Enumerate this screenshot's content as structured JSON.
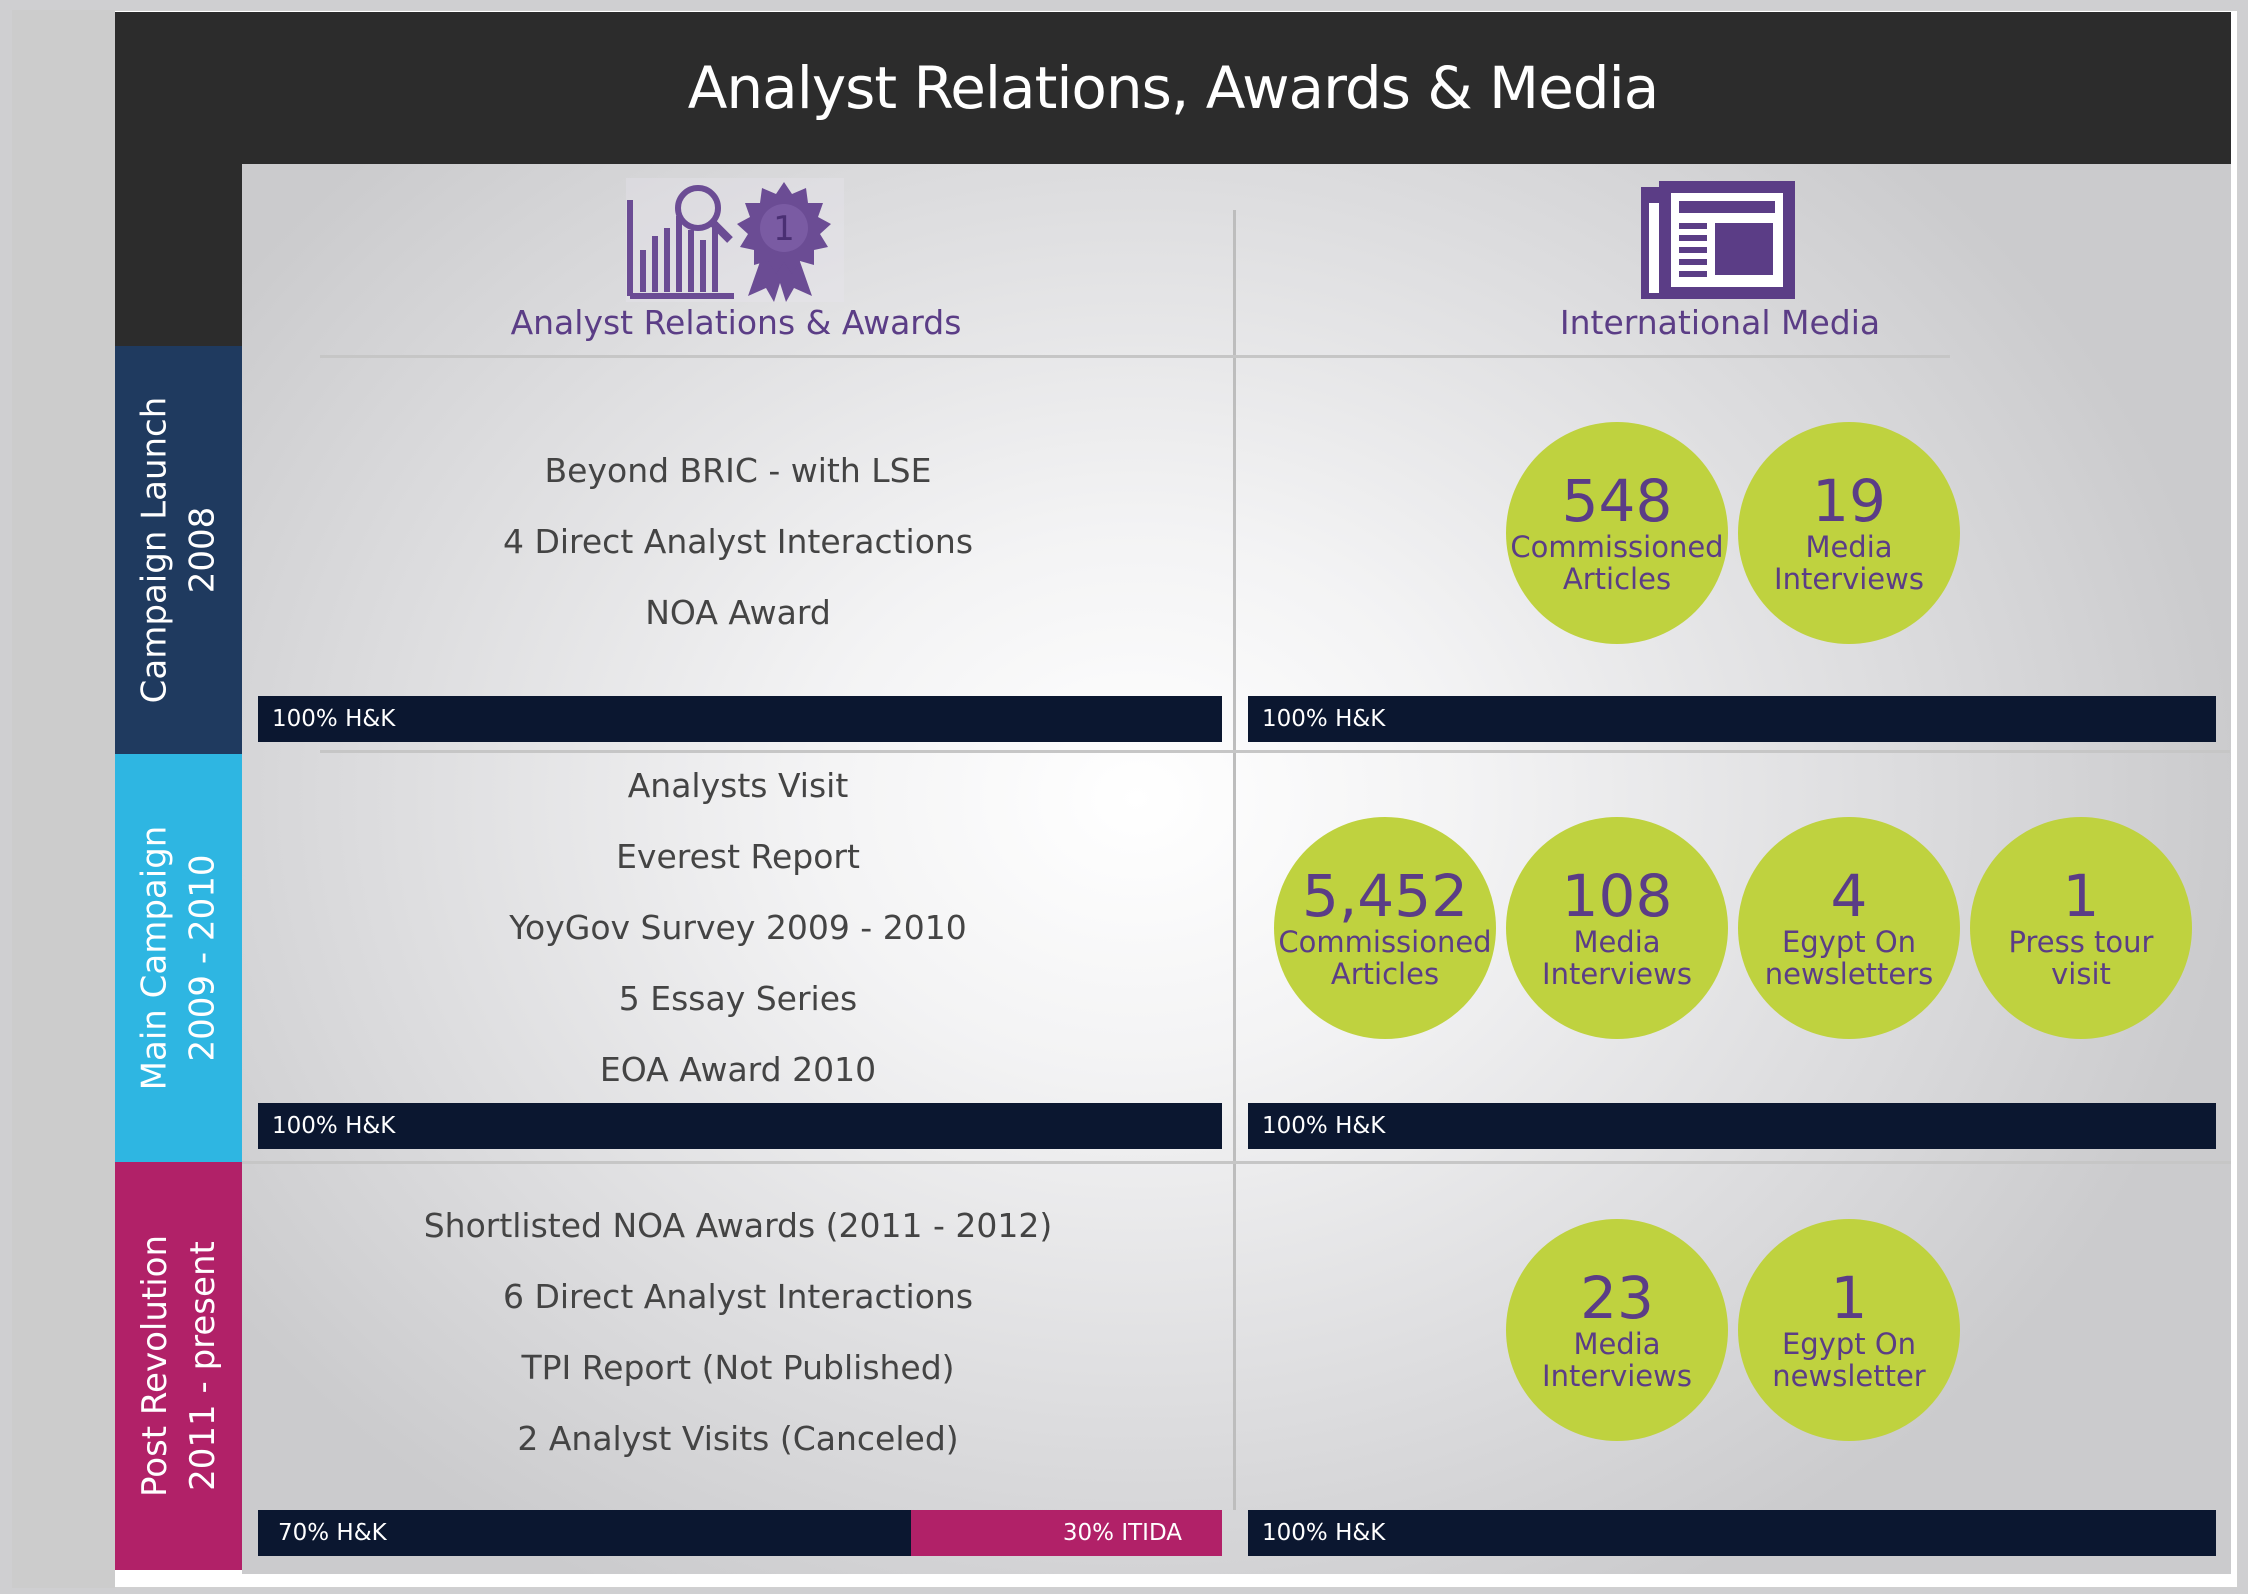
{
  "title": "Analyst Relations, Awards & Media",
  "columns": {
    "analyst": "Analyst Relations & Awards",
    "media": "International Media"
  },
  "award_badge_number": "1",
  "colors": {
    "header_bg": "#2c2c2c",
    "accent_purple": "#5b3d86",
    "circle_green": "#bfd23f",
    "bar_navy": "#0b1730",
    "itida_pink": "#b12168",
    "phase1_color": "#1f3a5f",
    "phase2_color": "#2eb6e2",
    "phase3_color": "#b12168"
  },
  "icons": [
    "bar-chart-magnifier-icon",
    "award-ribbon-icon",
    "newspaper-icon"
  ],
  "phases": [
    {
      "line1": "Campaign Launch",
      "line2": "2008",
      "analyst_items": [
        "Beyond BRIC - with LSE",
        "4 Direct Analyst Interactions",
        "NOA Award"
      ],
      "analyst_bar": {
        "hk_label": "100% H&K"
      },
      "media_circles": [
        {
          "num": "548",
          "label": "Commissioned\nArticles"
        },
        {
          "num": "19",
          "label": "Media\nInterviews"
        }
      ],
      "media_bar": "100% H&K"
    },
    {
      "line1": "Main Campaign",
      "line2": "2009 - 2010",
      "analyst_items": [
        "Analysts Visit",
        "Everest Report",
        "YoyGov Survey 2009 - 2010",
        "5 Essay Series",
        "EOA Award 2010"
      ],
      "analyst_bar": {
        "hk_label": "100% H&K"
      },
      "media_circles": [
        {
          "num": "5,452",
          "label": "Commissioned\nArticles"
        },
        {
          "num": "108",
          "label": "Media\nInterviews"
        },
        {
          "num": "4",
          "label": "Egypt On\nnewsletters"
        },
        {
          "num": "1",
          "label": "Press tour\nvisit"
        }
      ],
      "media_bar": "100% H&K"
    },
    {
      "line1": "Post Revolution",
      "line2": "2011 - present",
      "analyst_items": [
        "Shortlisted NOA Awards (2011 - 2012)",
        "6 Direct Analyst Interactions",
        "TPI Report (Not Published)",
        "2 Analyst Visits (Canceled)"
      ],
      "analyst_bar": {
        "hk_label": "70% H&K",
        "hk_percent": 70,
        "itida_label": "30% ITIDA",
        "itida_percent": 30
      },
      "media_circles": [
        {
          "num": "23",
          "label": "Media\nInterviews"
        },
        {
          "num": "1",
          "label": "Egypt On\nnewsletter"
        }
      ],
      "media_bar": "100% H&K"
    }
  ]
}
